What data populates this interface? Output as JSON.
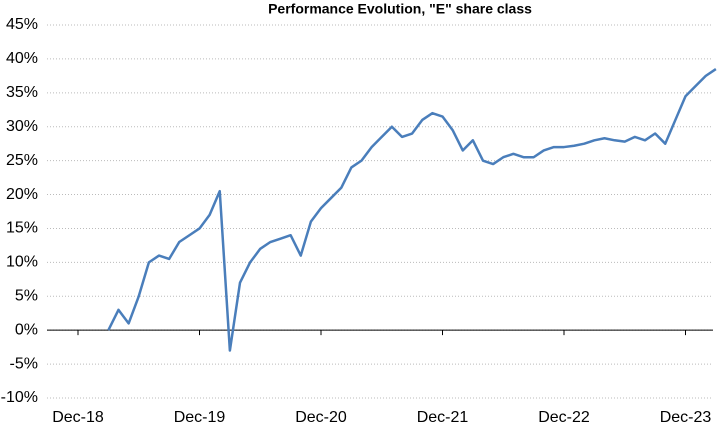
{
  "chart_data": {
    "type": "line",
    "title": "Performance Evolution, \"E\" share class",
    "x": [
      "Dec-18",
      "Jan-19",
      "Feb-19",
      "Mar-19",
      "Apr-19",
      "May-19",
      "Jun-19",
      "Jul-19",
      "Aug-19",
      "Sep-19",
      "Oct-19",
      "Nov-19",
      "Dec-19",
      "Jan-20",
      "Feb-20",
      "Mar-20",
      "Apr-20",
      "May-20",
      "Jun-20",
      "Jul-20",
      "Aug-20",
      "Sep-20",
      "Oct-20",
      "Nov-20",
      "Dec-20",
      "Jan-21",
      "Feb-21",
      "Mar-21",
      "Apr-21",
      "May-21",
      "Jun-21",
      "Jul-21",
      "Aug-21",
      "Sep-21",
      "Oct-21",
      "Nov-21",
      "Dec-21",
      "Jan-22",
      "Feb-22",
      "Mar-22",
      "Apr-22",
      "May-22",
      "Jun-22",
      "Jul-22",
      "Aug-22",
      "Sep-22",
      "Oct-22",
      "Nov-22",
      "Dec-22",
      "Jan-23",
      "Feb-23",
      "Mar-23",
      "Apr-23",
      "May-23",
      "Jun-23",
      "Jul-23",
      "Aug-23",
      "Sep-23",
      "Oct-23",
      "Nov-23",
      "Dec-23",
      "Jan-24",
      "Feb-24",
      "Mar-24"
    ],
    "series": [
      {
        "name": "\"E\" share class",
        "color": "#4a7ebb",
        "values": [
          null,
          null,
          null,
          0,
          3,
          1,
          5,
          10,
          11,
          10.5,
          13,
          14,
          15,
          17,
          20.5,
          -3,
          7,
          10,
          12,
          13,
          13.5,
          14,
          11,
          16,
          18,
          19.5,
          21,
          24,
          25,
          27,
          28.5,
          30,
          28.5,
          29,
          31,
          32,
          31.5,
          29.5,
          26.5,
          28,
          25,
          24.5,
          25.5,
          26,
          25.5,
          25.5,
          26.5,
          27,
          27,
          27.2,
          27.5,
          28,
          28.3,
          28,
          27.8,
          28.5,
          28,
          29,
          27.5,
          31,
          34.5,
          36,
          37.5,
          38.5
        ]
      }
    ],
    "xticks": [
      "Dec-18",
      "Dec-19",
      "Dec-20",
      "Dec-21",
      "Dec-22",
      "Dec-23"
    ],
    "ylim": [
      -10,
      45
    ],
    "yticks": [
      {
        "value": -10,
        "label": "-10%"
      },
      {
        "value": -5,
        "label": "-5%"
      },
      {
        "value": 0,
        "label": "0%"
      },
      {
        "value": 5,
        "label": "5%"
      },
      {
        "value": 10,
        "label": "10%"
      },
      {
        "value": 15,
        "label": "15%"
      },
      {
        "value": 20,
        "label": "20%"
      },
      {
        "value": 25,
        "label": "25%"
      },
      {
        "value": 30,
        "label": "30%"
      },
      {
        "value": 35,
        "label": "35%"
      },
      {
        "value": 40,
        "label": "40%"
      },
      {
        "value": 45,
        "label": "45%"
      }
    ],
    "grid": true
  }
}
